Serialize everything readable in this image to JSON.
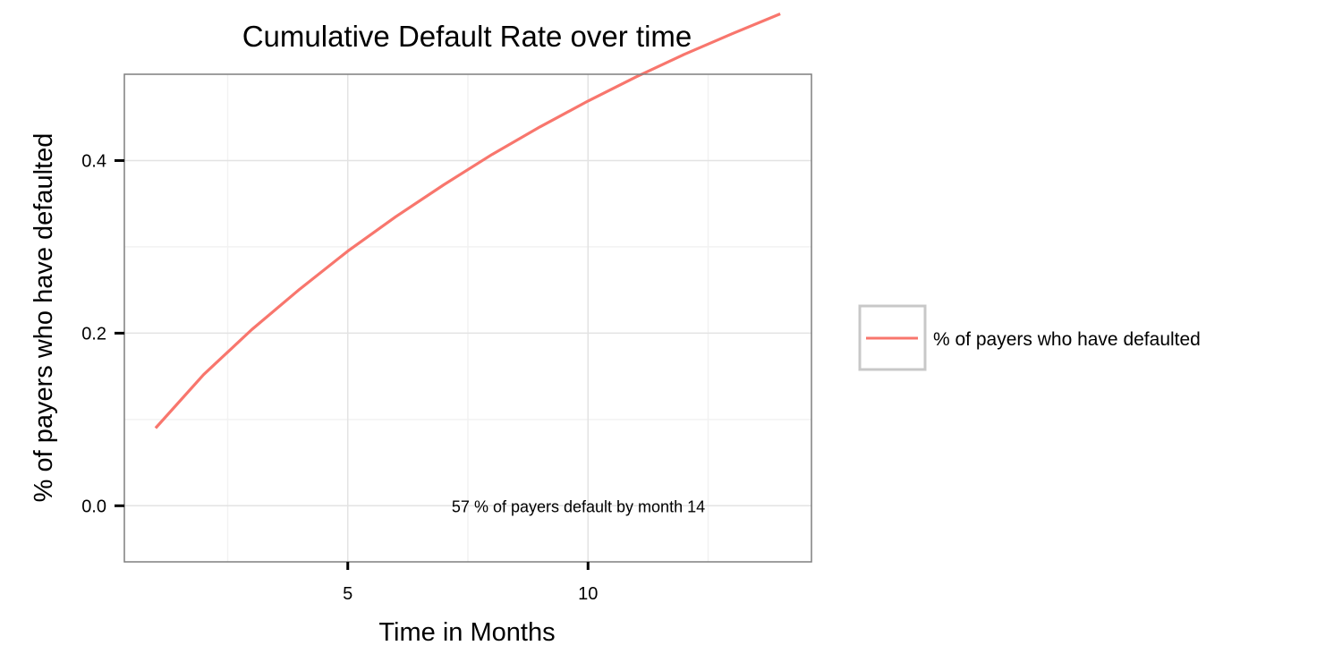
{
  "chart_data": {
    "type": "line",
    "title": "Cumulative Default Rate over time",
    "xlabel": "Time in Months",
    "ylabel": "% of payers who have defaulted",
    "xlim": [
      0.35,
      14.65
    ],
    "ylim": [
      -0.065,
      0.5
    ],
    "x_ticks": [
      5,
      10
    ],
    "x_tick_labels": [
      "5",
      "10"
    ],
    "y_ticks": [
      0.0,
      0.2,
      0.4
    ],
    "y_tick_labels": [
      "0.0",
      "0.2",
      "0.4"
    ],
    "grid": true,
    "legend_position": "right",
    "series": [
      {
        "name": "% of payers who have defaulted",
        "color": "#F8766D",
        "x": [
          1,
          2,
          3,
          4,
          5,
          6,
          7,
          8,
          9,
          10,
          11,
          12,
          13,
          14
        ],
        "y": [
          0.09,
          0.152,
          0.204,
          0.251,
          0.295,
          0.335,
          0.372,
          0.407,
          0.439,
          0.469,
          0.497,
          0.523,
          0.547,
          0.57
        ]
      }
    ],
    "annotation": {
      "text": "57 % of payers default by month 14",
      "x": 9.8,
      "y": 0.0
    }
  }
}
